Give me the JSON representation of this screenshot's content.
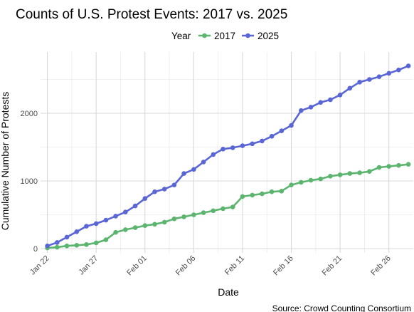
{
  "chart_data": {
    "type": "line",
    "title": "Counts of U.S. Protest Events: 2017 vs. 2025",
    "xlabel": "Date",
    "ylabel": "Cumulative Number of Protests",
    "caption": "Source: Crowd Counting Consortium",
    "legend": {
      "title": "Year",
      "placement": "top"
    },
    "grid": true,
    "ylim": [
      0,
      2800
    ],
    "y_ticks": [
      0,
      1000,
      2000
    ],
    "y_tick_labels": [
      "0",
      "1000",
      "2000"
    ],
    "x_tick_days": [
      0,
      5,
      10,
      15,
      20,
      25,
      30,
      35
    ],
    "x_tick_labels": [
      "Jan 22",
      "Jan 27",
      "Feb 01",
      "Feb 06",
      "Feb 11",
      "Feb 16",
      "Feb 21",
      "Feb 26"
    ],
    "x_dates": [
      "Jan 22",
      "Jan 23",
      "Jan 24",
      "Jan 25",
      "Jan 26",
      "Jan 27",
      "Jan 28",
      "Jan 29",
      "Jan 30",
      "Jan 31",
      "Feb 01",
      "Feb 02",
      "Feb 03",
      "Feb 04",
      "Feb 05",
      "Feb 06",
      "Feb 07",
      "Feb 08",
      "Feb 09",
      "Feb 10",
      "Feb 11",
      "Feb 12",
      "Feb 13",
      "Feb 14",
      "Feb 15",
      "Feb 16",
      "Feb 17",
      "Feb 18",
      "Feb 19",
      "Feb 20",
      "Feb 21",
      "Feb 22",
      "Feb 23",
      "Feb 24",
      "Feb 25",
      "Feb 26",
      "Feb 27",
      "Feb 28"
    ],
    "series": [
      {
        "name": "2017",
        "color": "#5cb56f",
        "values": [
          10,
          20,
          40,
          50,
          60,
          85,
          130,
          240,
          280,
          310,
          340,
          360,
          390,
          440,
          470,
          500,
          530,
          560,
          590,
          615,
          770,
          790,
          810,
          840,
          850,
          940,
          980,
          1010,
          1030,
          1070,
          1090,
          1110,
          1120,
          1140,
          1200,
          1215,
          1230,
          1245
        ]
      },
      {
        "name": "2025",
        "color": "#5a66d6",
        "values": [
          40,
          90,
          170,
          250,
          330,
          370,
          420,
          480,
          540,
          630,
          740,
          840,
          880,
          940,
          1110,
          1170,
          1280,
          1390,
          1470,
          1490,
          1520,
          1550,
          1590,
          1660,
          1740,
          1820,
          2040,
          2090,
          2160,
          2200,
          2270,
          2370,
          2460,
          2500,
          2540,
          2590,
          2640,
          2700
        ]
      }
    ]
  }
}
